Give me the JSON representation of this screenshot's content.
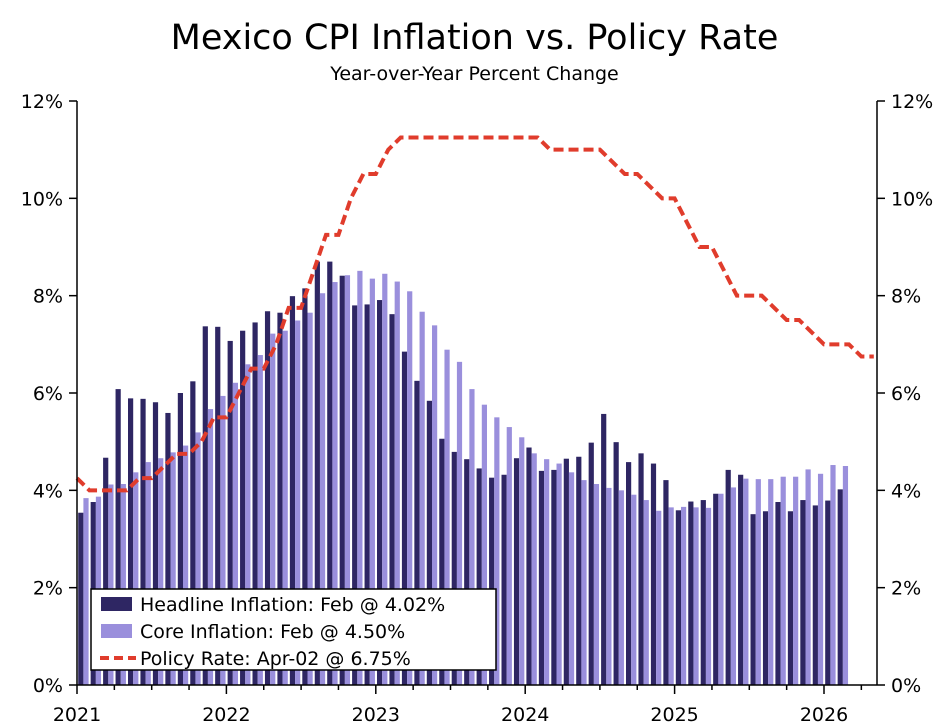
{
  "chart_data": {
    "type": "bar",
    "title": "Mexico CPI Inflation vs. Policy Rate",
    "subtitle": "Year-over-Year Percent Change",
    "xlabel": "",
    "ylabel": "",
    "ylim": [
      0,
      12
    ],
    "yticks_left": [
      "0%",
      "2%",
      "4%",
      "6%",
      "8%",
      "10%",
      "12%"
    ],
    "yticks_right": [
      "0%",
      "2%",
      "4%",
      "6%",
      "8%",
      "10%",
      "12%"
    ],
    "xticks": [
      "2021",
      "2022",
      "2023",
      "2024",
      "2025",
      "2026"
    ],
    "x_start": "2021-01",
    "legend": {
      "position": "bottom-left",
      "entries": [
        "Headline Inflation: Feb @ 4.02%",
        "Core Inflation: Feb @ 4.50%",
        "Policy Rate: Apr-02 @ 6.75%"
      ]
    },
    "colors": {
      "headline": "#2e2663",
      "core": "#9a8fdc",
      "policy": "#e03c2c"
    },
    "series": [
      {
        "name": "Headline Inflation",
        "type": "bar",
        "values": [
          3.54,
          3.76,
          4.67,
          6.08,
          5.89,
          5.88,
          5.81,
          5.59,
          6.0,
          6.24,
          7.37,
          7.36,
          7.07,
          7.28,
          7.45,
          7.68,
          7.65,
          7.99,
          8.15,
          8.7,
          8.7,
          8.41,
          7.8,
          7.82,
          7.91,
          7.62,
          6.85,
          6.25,
          5.84,
          5.06,
          4.79,
          4.64,
          4.45,
          4.26,
          4.32,
          4.66,
          4.88,
          4.4,
          4.42,
          4.65,
          4.69,
          4.98,
          5.57,
          4.99,
          4.58,
          4.76,
          4.55,
          4.21,
          3.59,
          3.77,
          3.8,
          3.93,
          4.42,
          4.32,
          3.51,
          3.57,
          3.76,
          3.57,
          3.8,
          3.69,
          3.79,
          4.02
        ]
      },
      {
        "name": "Core Inflation",
        "type": "bar",
        "values": [
          3.84,
          3.87,
          4.12,
          4.13,
          4.37,
          4.58,
          4.66,
          4.78,
          4.92,
          5.19,
          5.67,
          5.94,
          6.21,
          6.59,
          6.78,
          7.22,
          7.28,
          7.49,
          7.65,
          8.05,
          8.28,
          8.42,
          8.51,
          8.35,
          8.45,
          8.29,
          8.09,
          7.67,
          7.39,
          6.89,
          6.64,
          6.08,
          5.76,
          5.5,
          5.3,
          5.09,
          4.76,
          4.64,
          4.55,
          4.37,
          4.21,
          4.13,
          4.05,
          4.0,
          3.91,
          3.8,
          3.58,
          3.65,
          3.66,
          3.65,
          3.64,
          3.93,
          4.06,
          4.24,
          4.23,
          4.23,
          4.28,
          4.28,
          4.43,
          4.34,
          4.52,
          4.5
        ]
      },
      {
        "name": "Policy Rate",
        "type": "line",
        "style": "dashed",
        "values": [
          4.25,
          4.0,
          4.0,
          4.0,
          4.0,
          4.25,
          4.25,
          4.5,
          4.75,
          4.75,
          5.0,
          5.5,
          5.5,
          6.0,
          6.5,
          6.5,
          7.0,
          7.75,
          7.75,
          8.5,
          9.25,
          9.25,
          10.0,
          10.5,
          10.5,
          11.0,
          11.25,
          11.25,
          11.25,
          11.25,
          11.25,
          11.25,
          11.25,
          11.25,
          11.25,
          11.25,
          11.25,
          11.25,
          11.0,
          11.0,
          11.0,
          11.0,
          11.0,
          10.75,
          10.5,
          10.5,
          10.25,
          10.0,
          10.0,
          9.5,
          9.0,
          9.0,
          8.5,
          8.0,
          8.0,
          8.0,
          7.75,
          7.5,
          7.5,
          7.25,
          7.0,
          7.0,
          7.0,
          6.75,
          6.75
        ]
      }
    ]
  }
}
